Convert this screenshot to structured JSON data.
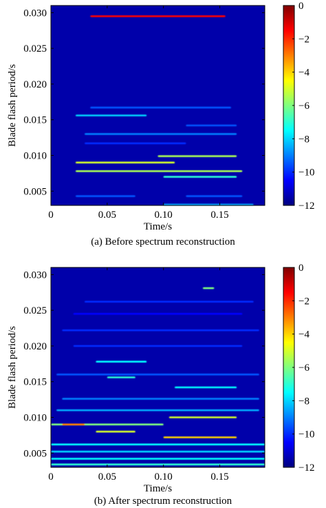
{
  "colors": {
    "background": "#1f2a85",
    "colormap": [
      "#00007f",
      "#0000ff",
      "#007fff",
      "#00ffff",
      "#7fff7f",
      "#ffff00",
      "#ff7f00",
      "#ff0000",
      "#7f0000"
    ]
  },
  "chart_data": [
    {
      "type": "heatmap",
      "caption": "(a) Before spectrum reconstruction",
      "xlabel": "Time/s",
      "ylabel": "Blade flash period/s",
      "xlim": [
        0,
        0.19
      ],
      "ylim": [
        0.003,
        0.031
      ],
      "xticks": [
        0,
        0.05,
        0.1,
        0.15
      ],
      "xtick_labels": [
        "0",
        "0.05",
        "0.10",
        "0.15"
      ],
      "yticks": [
        0.005,
        0.01,
        0.015,
        0.02,
        0.025,
        0.03
      ],
      "ytick_labels": [
        "0.005",
        "0.010",
        "0.015",
        "0.020",
        "0.025",
        "0.030"
      ],
      "colorbar": {
        "range": [
          -12,
          0
        ],
        "ticks": [
          0,
          -2,
          -4,
          -6,
          -8,
          -10,
          -12
        ],
        "tick_labels": [
          "0",
          "−2",
          "−4",
          "−6",
          "−8",
          "−10",
          "−12"
        ]
      },
      "background_value": -11.5,
      "bands": [
        {
          "y": 0.0295,
          "x0": 0.035,
          "x1": 0.155,
          "value": -1.5
        },
        {
          "y": 0.0167,
          "x0": 0.035,
          "x1": 0.16,
          "value": -9.5
        },
        {
          "y": 0.0156,
          "x0": 0.022,
          "x1": 0.085,
          "value": -8.0
        },
        {
          "y": 0.0142,
          "x0": 0.12,
          "x1": 0.165,
          "value": -9.5
        },
        {
          "y": 0.013,
          "x0": 0.03,
          "x1": 0.165,
          "value": -9.0
        },
        {
          "y": 0.0117,
          "x0": 0.03,
          "x1": 0.12,
          "value": -10.0
        },
        {
          "y": 0.0099,
          "x0": 0.095,
          "x1": 0.165,
          "value": -5.5
        },
        {
          "y": 0.009,
          "x0": 0.022,
          "x1": 0.11,
          "value": -5.0
        },
        {
          "y": 0.0078,
          "x0": 0.022,
          "x1": 0.17,
          "value": -5.5
        },
        {
          "y": 0.007,
          "x0": 0.1,
          "x1": 0.165,
          "value": -7.0
        },
        {
          "y": 0.0043,
          "x0": 0.022,
          "x1": 0.075,
          "value": -9.5
        },
        {
          "y": 0.0043,
          "x0": 0.12,
          "x1": 0.17,
          "value": -9.5
        },
        {
          "y": 0.0031,
          "x0": 0.1,
          "x1": 0.18,
          "value": -8.5
        }
      ]
    },
    {
      "type": "heatmap",
      "caption": "(b) After spectrum reconstruction",
      "xlabel": "Time/s",
      "ylabel": "Blade flash period/s",
      "xlim": [
        0,
        0.19
      ],
      "ylim": [
        0.003,
        0.031
      ],
      "xticks": [
        0,
        0.05,
        0.1,
        0.15
      ],
      "xtick_labels": [
        "0",
        "0.05",
        "0.10",
        "0.15"
      ],
      "yticks": [
        0.005,
        0.01,
        0.015,
        0.02,
        0.025,
        0.03
      ],
      "ytick_labels": [
        "0.005",
        "0.010",
        "0.015",
        "0.020",
        "0.025",
        "0.030"
      ],
      "colorbar": {
        "range": [
          -12,
          0
        ],
        "ticks": [
          0,
          -2,
          -4,
          -6,
          -8,
          -10,
          -12
        ],
        "tick_labels": [
          "0",
          "−2",
          "−4",
          "−6",
          "−8",
          "−10",
          "−12"
        ]
      },
      "background_value": -11.5,
      "bands": [
        {
          "y": 0.0281,
          "x0": 0.135,
          "x1": 0.145,
          "value": -6.0
        },
        {
          "y": 0.0262,
          "x0": 0.03,
          "x1": 0.18,
          "value": -10.0
        },
        {
          "y": 0.0245,
          "x0": 0.02,
          "x1": 0.17,
          "value": -10.5
        },
        {
          "y": 0.0222,
          "x0": 0.01,
          "x1": 0.185,
          "value": -10.0
        },
        {
          "y": 0.02,
          "x0": 0.02,
          "x1": 0.17,
          "value": -10.0
        },
        {
          "y": 0.0178,
          "x0": 0.04,
          "x1": 0.085,
          "value": -7.5
        },
        {
          "y": 0.016,
          "x0": 0.005,
          "x1": 0.185,
          "value": -9.5
        },
        {
          "y": 0.0156,
          "x0": 0.05,
          "x1": 0.075,
          "value": -7.0
        },
        {
          "y": 0.0142,
          "x0": 0.11,
          "x1": 0.165,
          "value": -7.5
        },
        {
          "y": 0.0126,
          "x0": 0.01,
          "x1": 0.185,
          "value": -9.0
        },
        {
          "y": 0.011,
          "x0": 0.005,
          "x1": 0.185,
          "value": -8.5
        },
        {
          "y": 0.01,
          "x0": 0.105,
          "x1": 0.165,
          "value": -5.0
        },
        {
          "y": 0.009,
          "x0": 0.0,
          "x1": 0.1,
          "value": -6.0
        },
        {
          "y": 0.009,
          "x0": 0.01,
          "x1": 0.03,
          "value": -3.0
        },
        {
          "y": 0.008,
          "x0": 0.04,
          "x1": 0.075,
          "value": -5.0
        },
        {
          "y": 0.0072,
          "x0": 0.1,
          "x1": 0.165,
          "value": -4.0
        },
        {
          "y": 0.0062,
          "x0": 0.0,
          "x1": 0.19,
          "value": -7.5
        },
        {
          "y": 0.0052,
          "x0": 0.0,
          "x1": 0.19,
          "value": -8.0
        },
        {
          "y": 0.0042,
          "x0": 0.0,
          "x1": 0.19,
          "value": -7.5
        },
        {
          "y": 0.0034,
          "x0": 0.0,
          "x1": 0.19,
          "value": -7.0
        }
      ]
    }
  ]
}
